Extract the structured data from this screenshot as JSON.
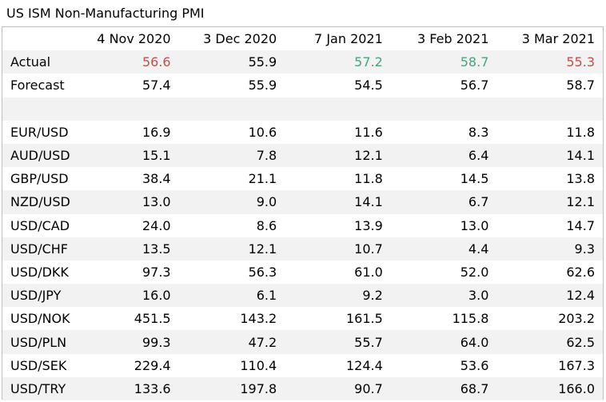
{
  "title": "US ISM Non-Manufacturing PMI",
  "colors": {
    "red": "#c0504d",
    "green": "#4aa37a",
    "default": "#000000"
  },
  "columns": [
    "4 Nov 2020",
    "3 Dec 2020",
    "7 Jan 2021",
    "3 Feb 2021",
    "3 Mar 2021"
  ],
  "actual": {
    "label": "Actual",
    "values": [
      "56.6",
      "55.9",
      "57.2",
      "58.7",
      "55.3"
    ],
    "colors": [
      "#c0504d",
      "#000000",
      "#4aa37a",
      "#4aa37a",
      "#c0504d"
    ]
  },
  "forecast": {
    "label": "Forecast",
    "values": [
      "57.4",
      "55.9",
      "54.5",
      "56.7",
      "58.7"
    ]
  },
  "pairs": [
    {
      "label": "EUR/USD",
      "values": [
        "16.9",
        "10.6",
        "11.6",
        "8.3",
        "11.8"
      ]
    },
    {
      "label": "AUD/USD",
      "values": [
        "15.1",
        "7.8",
        "12.1",
        "6.4",
        "14.1"
      ]
    },
    {
      "label": "GBP/USD",
      "values": [
        "38.4",
        "21.1",
        "11.8",
        "14.5",
        "13.8"
      ]
    },
    {
      "label": "NZD/USD",
      "values": [
        "13.0",
        "9.0",
        "14.1",
        "6.7",
        "12.1"
      ]
    },
    {
      "label": "USD/CAD",
      "values": [
        "24.0",
        "8.6",
        "13.9",
        "13.0",
        "14.7"
      ]
    },
    {
      "label": "USD/CHF",
      "values": [
        "13.5",
        "12.1",
        "10.7",
        "4.4",
        "9.3"
      ]
    },
    {
      "label": "USD/DKK",
      "values": [
        "97.3",
        "56.3",
        "61.0",
        "52.0",
        "62.6"
      ]
    },
    {
      "label": "USD/JPY",
      "values": [
        "16.0",
        "6.1",
        "9.2",
        "3.0",
        "12.4"
      ]
    },
    {
      "label": "USD/NOK",
      "values": [
        "451.5",
        "143.2",
        "161.5",
        "115.8",
        "203.2"
      ]
    },
    {
      "label": "USD/PLN",
      "values": [
        "99.3",
        "47.2",
        "55.7",
        "64.0",
        "62.5"
      ]
    },
    {
      "label": "USD/SEK",
      "values": [
        "229.4",
        "110.4",
        "124.4",
        "53.6",
        "167.3"
      ]
    },
    {
      "label": "USD/TRY",
      "values": [
        "133.6",
        "197.8",
        "90.7",
        "68.7",
        "166.0"
      ]
    }
  ]
}
